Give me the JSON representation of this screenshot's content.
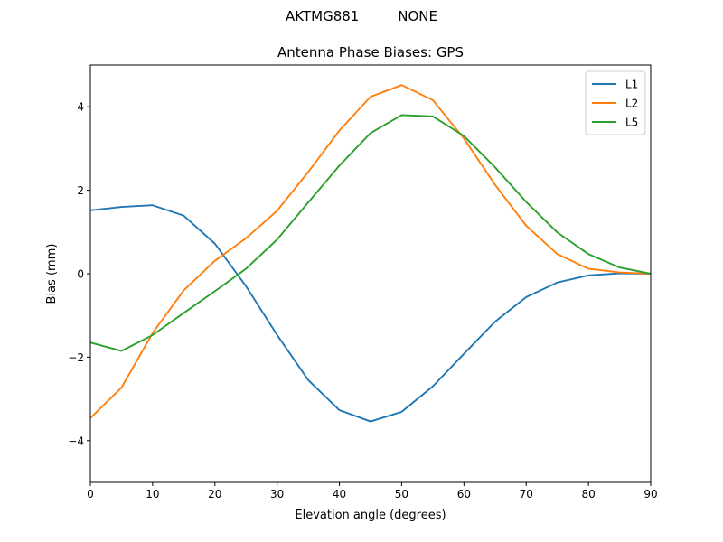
{
  "chart_data": {
    "type": "line",
    "suptitle": "AKTMG881         NONE",
    "title": "Antenna Phase Biases: GPS",
    "xlabel": "Elevation angle (degrees)",
    "ylabel": "Bias (mm)",
    "xlim": [
      0,
      90
    ],
    "ylim": [
      -5,
      5
    ],
    "xticks": [
      0,
      10,
      20,
      30,
      40,
      50,
      60,
      70,
      80,
      90
    ],
    "yticks": [
      -4,
      -2,
      0,
      2,
      4
    ],
    "ytick_labels": [
      "−4",
      "−2",
      "0",
      "2",
      "4"
    ],
    "grid": false,
    "legend_position": "top-right",
    "x": [
      0,
      5,
      10,
      15,
      20,
      25,
      30,
      35,
      40,
      45,
      50,
      55,
      60,
      65,
      70,
      75,
      80,
      85,
      90
    ],
    "series": [
      {
        "name": "L1",
        "color": "#1f77b4",
        "values": [
          1.52,
          1.6,
          1.64,
          1.39,
          0.72,
          -0.3,
          -1.47,
          -2.55,
          -3.27,
          -3.54,
          -3.31,
          -2.7,
          -1.92,
          -1.15,
          -0.56,
          -0.21,
          -0.04,
          0.01,
          0.0
        ]
      },
      {
        "name": "L2",
        "color": "#ff7f0e",
        "values": [
          -3.46,
          -2.73,
          -1.42,
          -0.4,
          0.31,
          0.85,
          1.51,
          2.44,
          3.43,
          4.24,
          4.52,
          4.16,
          3.24,
          2.13,
          1.15,
          0.47,
          0.12,
          0.03,
          0.0
        ]
      },
      {
        "name": "L5",
        "color": "#2ca02c",
        "values": [
          -1.65,
          -1.85,
          -1.47,
          -0.94,
          -0.42,
          0.12,
          0.82,
          1.71,
          2.59,
          3.37,
          3.8,
          3.77,
          3.3,
          2.55,
          1.72,
          0.99,
          0.47,
          0.15,
          0.0
        ]
      }
    ]
  }
}
